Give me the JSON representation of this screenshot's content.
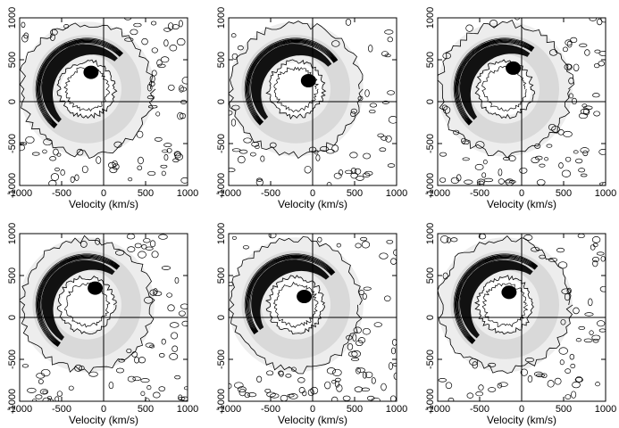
{
  "chart_data": [
    {
      "type": "heatmap",
      "panel": "top-left",
      "xlabel": "Velocity (km/s)",
      "ylabel": "",
      "xlim": [
        -1000,
        1000
      ],
      "ylim": [
        -1000,
        1000
      ],
      "xticks": [
        "-1000",
        "-500",
        "0",
        "500",
        "1000"
      ],
      "yticks": [
        "-1000",
        "-500",
        "0",
        "500",
        "1000"
      ],
      "overlay": "contour",
      "crosshair": [
        0,
        0
      ],
      "grid": false,
      "arc": {
        "start_angle": 230,
        "end_angle": 45,
        "blob": [
          -150,
          350
        ]
      }
    },
    {
      "type": "heatmap",
      "panel": "top-middle",
      "xlabel": "Velocity (km/s)",
      "ylabel": "",
      "xlim": [
        -1000,
        1000
      ],
      "ylim": [
        -1000,
        1000
      ],
      "xticks": [
        "-1000",
        "-500",
        "0",
        "500",
        "1000"
      ],
      "yticks": [
        "-1000",
        "-500",
        "0",
        "500",
        "1000"
      ],
      "overlay": "contour",
      "crosshair": [
        0,
        0
      ],
      "grid": false,
      "arc": {
        "start_angle": 225,
        "end_angle": 35,
        "blob": [
          -50,
          250
        ]
      }
    },
    {
      "type": "heatmap",
      "panel": "top-right",
      "xlabel": "Velocity (km/s)",
      "ylabel": "",
      "xlim": [
        -1000,
        1000
      ],
      "ylim": [
        -1000,
        1000
      ],
      "xticks": [
        "-1000",
        "-500",
        "0",
        "500",
        "1000"
      ],
      "yticks": [
        "-1000",
        "-500",
        "0",
        "500",
        "1000"
      ],
      "overlay": "contour",
      "crosshair": [
        0,
        0
      ],
      "grid": false,
      "arc": {
        "start_angle": 225,
        "end_angle": 55,
        "blob": [
          -100,
          400
        ]
      }
    },
    {
      "type": "heatmap",
      "panel": "bottom-left",
      "xlabel": "Velocity (km/s)",
      "ylabel": "",
      "xlim": [
        -1000,
        1000
      ],
      "ylim": [
        -1000,
        1000
      ],
      "xticks": [
        "-1000",
        "-500",
        "0",
        "500",
        "1000"
      ],
      "yticks": [
        "-1000",
        "-500",
        "0",
        "500",
        "1000"
      ],
      "overlay": "contour",
      "crosshair": [
        0,
        0
      ],
      "grid": false,
      "arc": {
        "start_angle": 235,
        "end_angle": 50,
        "blob": [
          -100,
          350
        ]
      }
    },
    {
      "type": "heatmap",
      "panel": "bottom-middle",
      "xlabel": "Velocity (km/s)",
      "ylabel": "",
      "xlim": [
        -1000,
        1000
      ],
      "ylim": [
        -1000,
        1000
      ],
      "xticks": [
        "-1000",
        "-500",
        "0",
        "500",
        "1000"
      ],
      "yticks": [
        "-1000",
        "-500",
        "0",
        "500",
        "1000"
      ],
      "overlay": "contour",
      "crosshair": [
        0,
        0
      ],
      "grid": false,
      "arc": {
        "start_angle": 215,
        "end_angle": 40,
        "blob": [
          -100,
          250
        ]
      }
    },
    {
      "type": "heatmap",
      "panel": "bottom-right",
      "xlabel": "Velocity (km/s)",
      "ylabel": "",
      "xlim": [
        -1000,
        1000
      ],
      "ylim": [
        -1000,
        1000
      ],
      "xticks": [
        "-1000",
        "-500",
        "0",
        "500",
        "1000"
      ],
      "yticks": [
        "-1000",
        "-500",
        "0",
        "500",
        "1000"
      ],
      "overlay": "contour",
      "crosshair": [
        0,
        0
      ],
      "grid": false,
      "arc": {
        "start_angle": 230,
        "end_angle": 50,
        "blob": [
          -150,
          300
        ]
      }
    }
  ],
  "colors": {
    "ink": "#000000",
    "halo": "#d9d9d9",
    "haze": "#ededed",
    "background": "#ffffff"
  }
}
